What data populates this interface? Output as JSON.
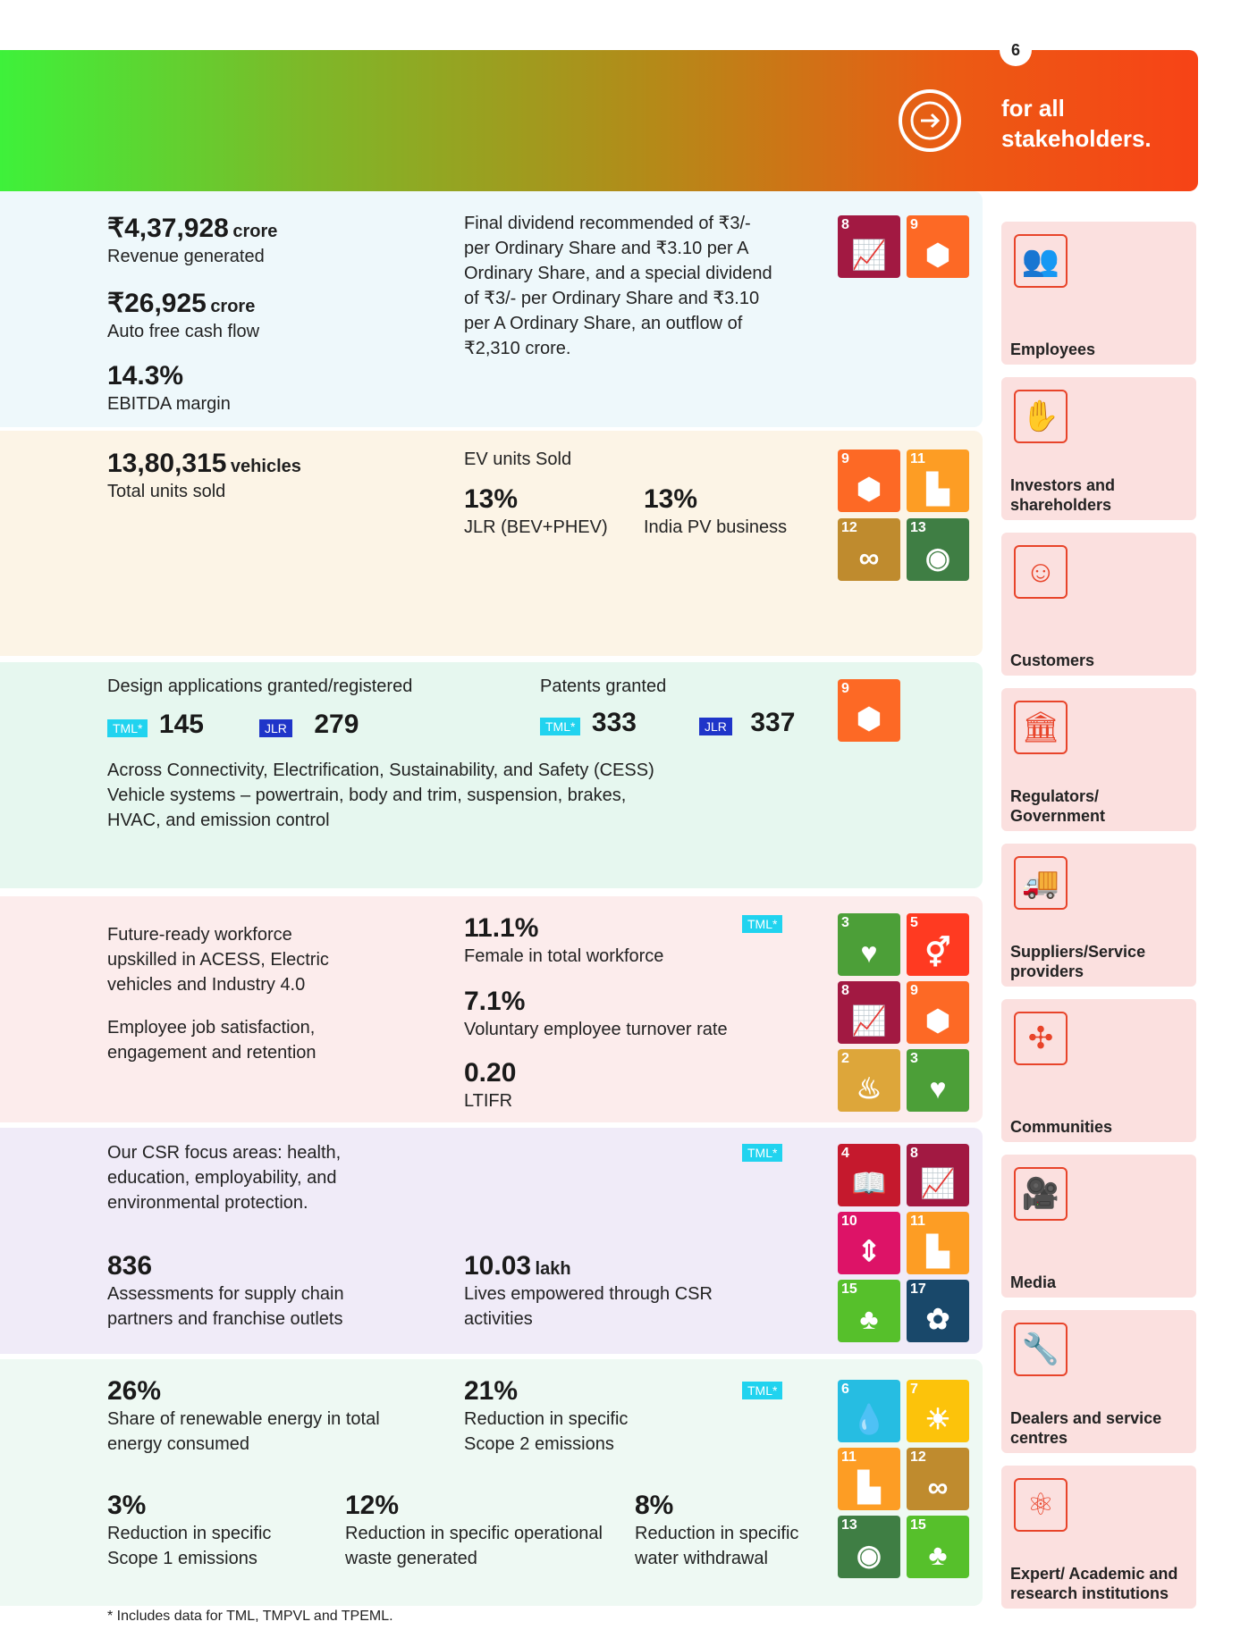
{
  "header": {
    "page_number": "6",
    "title": "for all stakeholders."
  },
  "s1": {
    "revenue_value": "₹4,37,928",
    "revenue_unit": "crore",
    "revenue_label": "Revenue generated",
    "fcf_value": "₹26,925",
    "fcf_unit": "crore",
    "fcf_label": "Auto free cash flow",
    "ebitda_value": "14.3%",
    "ebitda_label": "EBITDA margin",
    "dividend_text": "Final dividend recommended of ₹3/- per Ordinary Share and ₹3.10 per A Ordinary Share, and a special dividend of ₹3/- per Ordinary Share and ₹3.10 per A Ordinary Share, an outflow of ₹2,310 crore."
  },
  "s2": {
    "units_value": "13,80,315",
    "units_unit": "vehicles",
    "units_label": "Total units sold",
    "ev_title": "EV units Sold",
    "jlr_value": "13%",
    "jlr_label": "JLR (BEV+PHEV)",
    "india_value": "13%",
    "india_label": "India PV business"
  },
  "s3": {
    "design_title": "Design applications granted/registered",
    "design_tml": "145",
    "design_jlr": "279",
    "patents_title": "Patents granted",
    "patents_tml": "333",
    "patents_jlr": "337",
    "tag_tml": "TML*",
    "tag_jlr": "JLR",
    "text": "Across Connectivity, Electrification, Sustainability, and Safety (CESS) Vehicle systems – powertrain, body and trim, suspension, brakes, HVAC, and emission control"
  },
  "s4": {
    "para1": "Future-ready workforce upskilled in ACESS, Electric vehicles and Industry 4.0",
    "para2": "Employee job satisfaction, engagement and retention",
    "female_value": "11.1%",
    "female_label": "Female in total workforce",
    "turnover_value": "7.1%",
    "turnover_label": "Voluntary employee turnover rate",
    "ltifr_value": "0.20",
    "ltifr_label": "LTIFR",
    "tag": "TML*"
  },
  "s5": {
    "csr_text": "Our CSR focus areas: health, education, employability, and environmental protection.",
    "assess_value": "836",
    "assess_label": "Assessments for supply chain partners and franchise outlets",
    "lives_value": "10.03",
    "lives_unit": "lakh",
    "lives_label": "Lives empowered through CSR activities",
    "tag": "TML*"
  },
  "s6": {
    "renew_value": "26%",
    "renew_label": "Share of renewable energy in total energy consumed",
    "scope2_value": "21%",
    "scope2_label": "Reduction in specific Scope 2 emissions",
    "scope1_value": "3%",
    "scope1_label": "Reduction in specific Scope 1 emissions",
    "waste_value": "12%",
    "waste_label": "Reduction in specific operational waste generated",
    "water_value": "8%",
    "water_label": "Reduction in specific water withdrawal",
    "tag": "TML*"
  },
  "stakeholders": [
    {
      "label": "Employees",
      "icon": "people-icon"
    },
    {
      "label": "Investors and shareholders",
      "icon": "investor-icon"
    },
    {
      "label": "Customers",
      "icon": "customer-icon"
    },
    {
      "label": "Regulators/ Government",
      "icon": "government-icon"
    },
    {
      "label": "Suppliers/Service providers",
      "icon": "truck-icon"
    },
    {
      "label": "Communities",
      "icon": "network-icon"
    },
    {
      "label": "Media",
      "icon": "camera-icon"
    },
    {
      "label": "Dealers and service centres",
      "icon": "wrench-icon"
    },
    {
      "label": "Expert/ Academic and research institutions",
      "icon": "atom-icon"
    }
  ],
  "sdg_colors": {
    "3": "#4c9f38",
    "4": "#c5192d",
    "5": "#ff3a21",
    "6": "#26bde2",
    "7": "#fcc30b",
    "8": "#a21942",
    "9": "#fd6925",
    "10": "#dd1367",
    "11": "#fd9d24",
    "12": "#bf8b2e",
    "13": "#3f7e44",
    "15": "#56c02b",
    "17": "#19486a",
    "2": "#dda63a"
  },
  "footnote": "* Includes data for TML, TMPVL and TPEML."
}
